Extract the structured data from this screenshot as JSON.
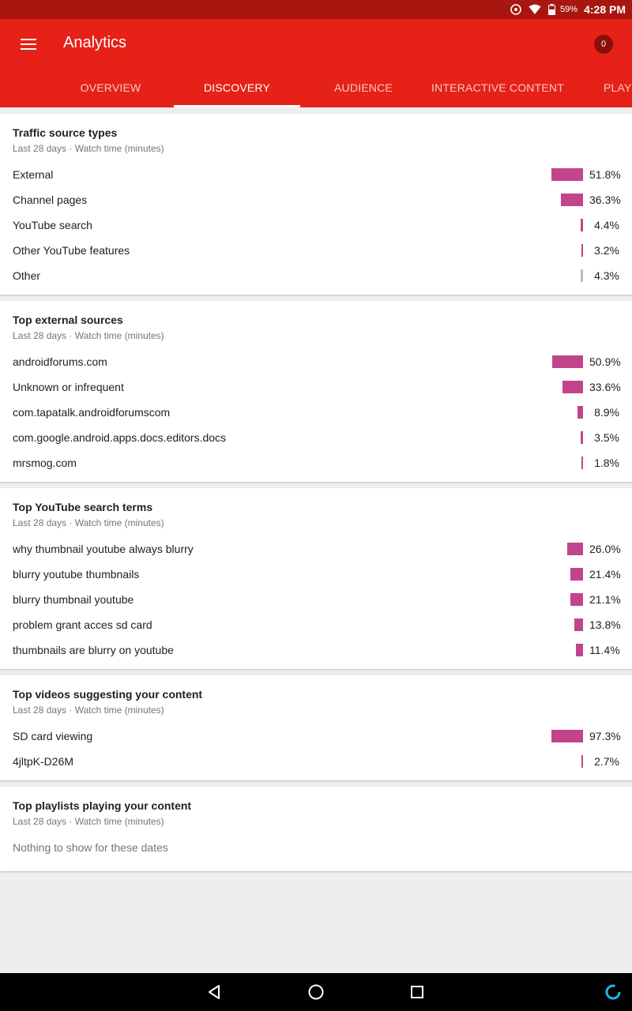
{
  "status_bar": {
    "battery": "59%",
    "time": "4:28 PM",
    "icons": [
      "sync-icon",
      "wifi-icon",
      "battery-icon"
    ]
  },
  "app_bar": {
    "title": "Analytics",
    "notification_count": "0",
    "menu_icon": "hamburger-menu-icon"
  },
  "tabs": [
    {
      "label": "OVERVIEW"
    },
    {
      "label": "DISCOVERY"
    },
    {
      "label": "AUDIENCE"
    },
    {
      "label": "INTERACTIVE CONTENT"
    },
    {
      "label": "PLAYLISTS"
    }
  ],
  "active_tab": "DISCOVERY",
  "colors": {
    "app_bar": "#e62117",
    "status_bar": "#a8170f",
    "bar": "#c2458b",
    "bar_other": "#bdbdbd"
  },
  "cards": {
    "traffic": {
      "title": "Traffic source types",
      "subtitle": "Last 28 days · Watch time (minutes)",
      "rows": [
        {
          "label": "External",
          "pct": "51.8%",
          "value": 51.8
        },
        {
          "label": "Channel pages",
          "pct": "36.3%",
          "value": 36.3
        },
        {
          "label": "YouTube search",
          "pct": "4.4%",
          "value": 4.4
        },
        {
          "label": "Other YouTube features",
          "pct": "3.2%",
          "value": 3.2
        },
        {
          "label": "Other",
          "pct": "4.3%",
          "value": 4.3
        }
      ]
    },
    "external": {
      "title": "Top external sources",
      "subtitle": "Last 28 days · Watch time (minutes)",
      "rows": [
        {
          "label": "androidforums.com",
          "pct": "50.9%",
          "value": 50.9
        },
        {
          "label": "Unknown or infrequent",
          "pct": "33.6%",
          "value": 33.6
        },
        {
          "label": "com.tapatalk.androidforumscom",
          "pct": "8.9%",
          "value": 8.9
        },
        {
          "label": "com.google.android.apps.docs.editors.docs",
          "pct": "3.5%",
          "value": 3.5
        },
        {
          "label": "mrsmog.com",
          "pct": "1.8%",
          "value": 1.8
        }
      ]
    },
    "search": {
      "title": "Top YouTube search terms",
      "subtitle": "Last 28 days · Watch time (minutes)",
      "rows": [
        {
          "label": "why thumbnail youtube always blurry",
          "pct": "26.0%",
          "value": 26.0
        },
        {
          "label": "blurry youtube thumbnails",
          "pct": "21.4%",
          "value": 21.4
        },
        {
          "label": "blurry thumbnail youtube",
          "pct": "21.1%",
          "value": 21.1
        },
        {
          "label": "problem grant acces sd card",
          "pct": "13.8%",
          "value": 13.8
        },
        {
          "label": "thumbnails are blurry on youtube",
          "pct": "11.4%",
          "value": 11.4
        }
      ]
    },
    "videos": {
      "title": "Top videos suggesting your content",
      "subtitle": "Last 28 days · Watch time (minutes)",
      "rows": [
        {
          "label": "SD card viewing",
          "pct": "97.3%",
          "value": 97.3
        },
        {
          "label": "4jltpK-D26M",
          "pct": "2.7%",
          "value": 2.7
        }
      ]
    },
    "playlists": {
      "title": "Top playlists playing your content",
      "subtitle": "Last 28 days · Watch time (minutes)",
      "empty": "Nothing to show for these dates"
    }
  },
  "nav_bar": {
    "icons": [
      "back-icon",
      "home-icon",
      "recents-icon",
      "assistant-icon"
    ]
  }
}
